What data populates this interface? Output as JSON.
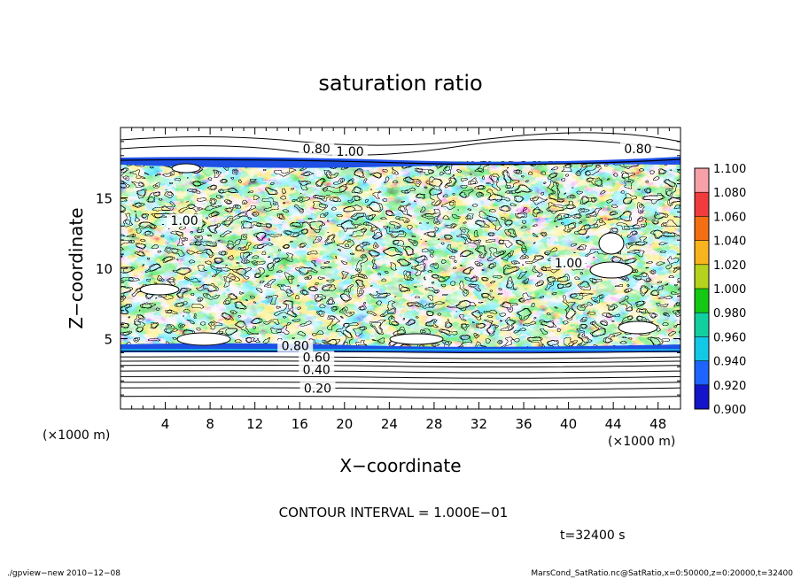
{
  "chart_data": {
    "type": "heatmap",
    "title": "saturation ratio",
    "xlabel": "X−coordinate",
    "ylabel": "Z−coordinate",
    "x_unit_label": "(×1000 m)",
    "y_unit_label": "(×1000 m)",
    "xlim": [
      0,
      50
    ],
    "ylim": [
      0,
      20
    ],
    "x_ticks": [
      4,
      8,
      12,
      16,
      20,
      24,
      28,
      32,
      36,
      40,
      44,
      48
    ],
    "y_ticks": [
      5,
      10,
      15
    ],
    "colorbar": {
      "levels": [
        "1.100",
        "1.080",
        "1.060",
        "1.040",
        "1.020",
        "1.000",
        "0.980",
        "0.960",
        "0.940",
        "0.920",
        "0.900"
      ],
      "colors": [
        "#f7a0a8",
        "#f03c3c",
        "#f46e14",
        "#f8b41e",
        "#b4d21e",
        "#14c814",
        "#12cfa0",
        "#12c8e6",
        "#1e64ff",
        "#1414c8",
        "#641ec8"
      ]
    },
    "contour_labels": [
      {
        "text": "0.80",
        "x": 17.5,
        "z": 18.3
      },
      {
        "text": "1.00",
        "x": 20.5,
        "z": 18.1
      },
      {
        "text": "0.80",
        "x": 46.2,
        "z": 18.3
      },
      {
        "text": "1.00",
        "x": 5.7,
        "z": 13.2
      },
      {
        "text": "1.00",
        "x": 40.0,
        "z": 10.2
      },
      {
        "text": "0.80",
        "x": 15.6,
        "z": 4.3
      },
      {
        "text": "0.60",
        "x": 17.5,
        "z": 3.5
      },
      {
        "text": "0.40",
        "x": 17.5,
        "z": 2.6
      },
      {
        "text": "0.20",
        "x": 17.6,
        "z": 1.3
      }
    ],
    "stratified_contours_z": [
      0.9,
      1.5,
      1.9,
      2.3,
      2.7,
      3.1,
      3.4,
      3.7,
      4.1
    ]
  },
  "annotations": {
    "contour_interval": "CONTOUR INTERVAL = 1.000E−01",
    "time": "t=32400 s",
    "program": "./gpview−new   2010−12−08",
    "source": "MarsCond_SatRatio.nc@SatRatio,x=0:50000,z=0:20000,t=32400"
  }
}
